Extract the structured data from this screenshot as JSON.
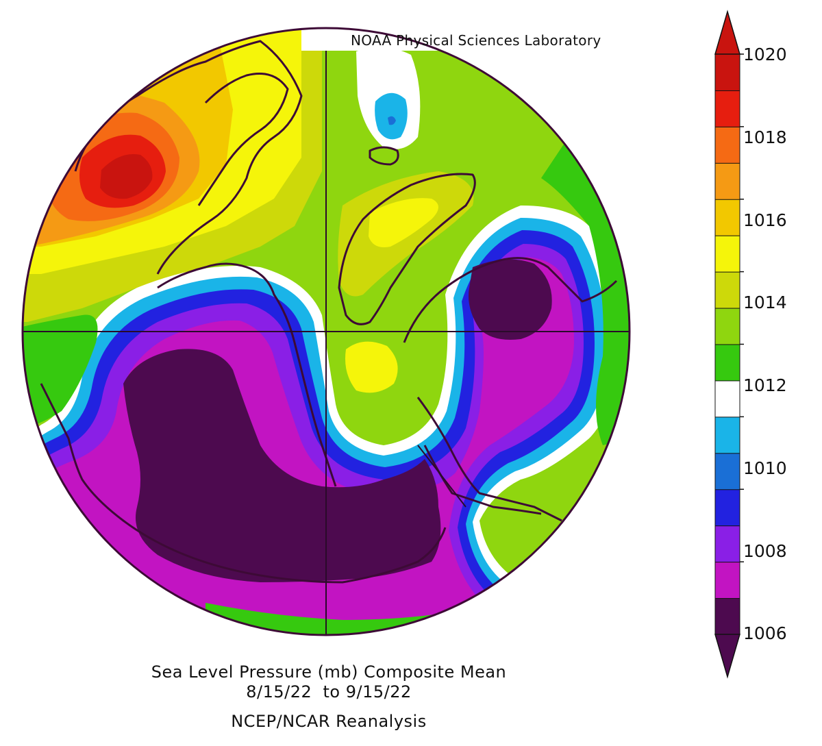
{
  "header": {
    "credit": "NOAA Physical Sciences Laboratory"
  },
  "caption": {
    "line1": "Sea Level Pressure (mb) Composite Mean",
    "line2": "8/15/22  to 9/15/22",
    "line3": "NCEP/NCAR Reanalysis"
  },
  "colorbar": {
    "labels": [
      "1020",
      "1018",
      "1016",
      "1014",
      "1012",
      "1010",
      "1008",
      "1006"
    ],
    "colors": [
      "#4d0a4f",
      "#c214c2",
      "#8a1fe6",
      "#2222e0",
      "#1a6fd6",
      "#1ab4e8",
      "#ffffff",
      "#36c90f",
      "#8fd60f",
      "#cdd90a",
      "#f5f50a",
      "#f2c800",
      "#f59a14",
      "#f56a14",
      "#e61e0f",
      "#c9140f"
    ]
  },
  "colors": {
    "deep_purple": "#4d0a4f",
    "magenta": "#c214c2",
    "violet": "#8a1fe6",
    "blue": "#2222e0",
    "cyan": "#1ab4e8",
    "green": "#36c90f",
    "yellow": "#f5f50a",
    "orange": "#f59a14",
    "red": "#e61e0f",
    "coastline": "#3d0a36"
  }
}
